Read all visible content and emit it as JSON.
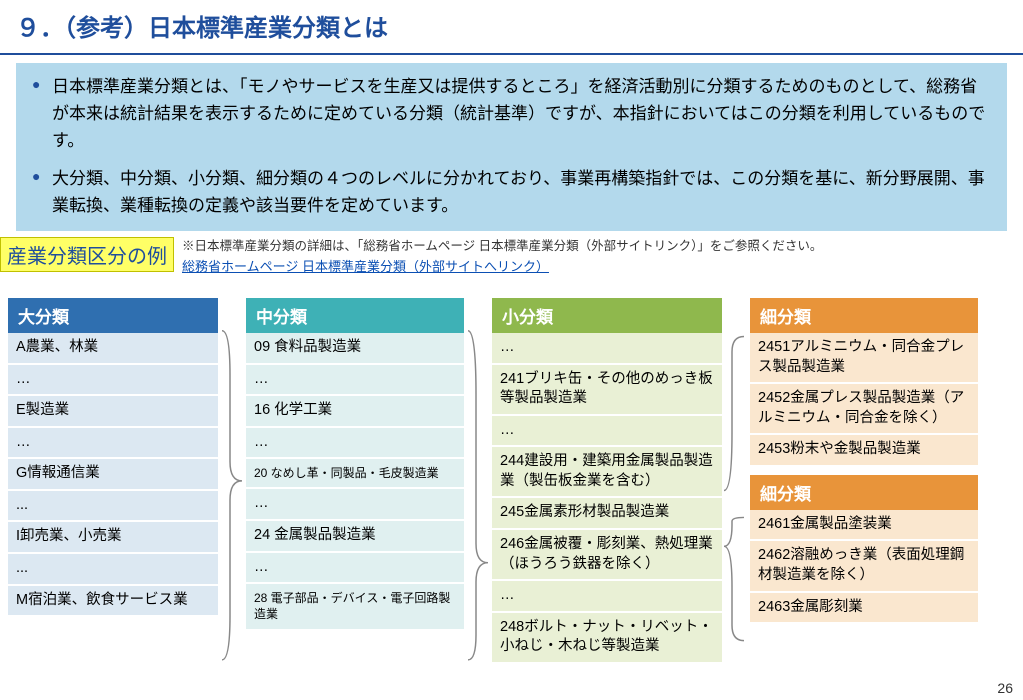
{
  "title": "９．（参考）日本標準産業分類とは",
  "info_bullets": [
    "日本標準産業分類とは、「モノやサービスを生産又は提供するところ」を経済活動別に分類するためのものとして、総務省が本来は統計結果を表示するために定めている分類（統計基準）ですが、本指針においてはこの分類を利用しているものです。",
    "大分類、中分類、小分類、細分類の４つのレベルに分かれており、事業再構築指針では、この分類を基に、新分野展開、事業転換、業種転換の定義や該当要件を定めています。"
  ],
  "example_label": "産業分類区分の例",
  "note_prefix": "※日本標準産業分類の詳細は、「総務省ホームページ 日本標準産業分類（外部サイトリンク）」をご参照ください。",
  "note_link": "総務省ホームページ 日本標準産業分類（外部サイトへリンク）",
  "headers": {
    "dai": "大分類",
    "chu": "中分類",
    "sho": "小分類",
    "sai": "細分類"
  },
  "col_dai": [
    "A農業、林業",
    "…",
    "E製造業",
    "…",
    "G情報通信業",
    "...",
    "I卸売業、小売業",
    "...",
    "M宿泊業、飲食サービス業"
  ],
  "col_chu": [
    {
      "t": "09 食料品製造業",
      "sm": false
    },
    {
      "t": "…",
      "sm": false
    },
    {
      "t": "16 化学工業",
      "sm": false
    },
    {
      "t": "…",
      "sm": false
    },
    {
      "t": "20 なめし革・同製品・毛皮製造業",
      "sm": true
    },
    {
      "t": "…",
      "sm": false
    },
    {
      "t": "24 金属製品製造業",
      "sm": false
    },
    {
      "t": "…",
      "sm": false
    },
    {
      "t": "28 電子部品・デバイス・電子回路製造業",
      "sm": true
    }
  ],
  "col_sho": [
    "…",
    "241ブリキ缶・その他のめっき板等製品製造業",
    "…",
    "244建設用・建築用金属製品製造業（製缶板金業を含む）",
    "245金属素形材製品製造業",
    "246金属被覆・彫刻業、熱処理業（ほうろう鉄器を除く）",
    "…",
    "248ボルト・ナット・リベット・小ねじ・木ねじ等製造業"
  ],
  "col_sai_a": [
    "2451アルミニウム・同合金プレス製品製造業",
    "2452金属プレス製品製造業（アルミニウム・同合金を除く）",
    "2453粉末や金製品製造業"
  ],
  "col_sai_b": [
    "2461金属製品塗装業",
    "2462溶融めっき業（表面処理鋼材製造業を除く）",
    "2463金属彫刻業"
  ],
  "colors": {
    "title": "#1f4e9c",
    "infobox_bg": "#b3d9ec",
    "badge_bg": "#ffff66",
    "hdr_dai": "#2f6fb0",
    "cell_dai": "#dce8f2",
    "hdr_chu": "#3eb1b6",
    "cell_chu": "#e0f0f0",
    "hdr_sho": "#8fb84d",
    "cell_sho": "#e9f0d5",
    "hdr_sai": "#e8943a",
    "cell_sai": "#fae7cf",
    "brace": "#888888"
  },
  "page_number": "26"
}
